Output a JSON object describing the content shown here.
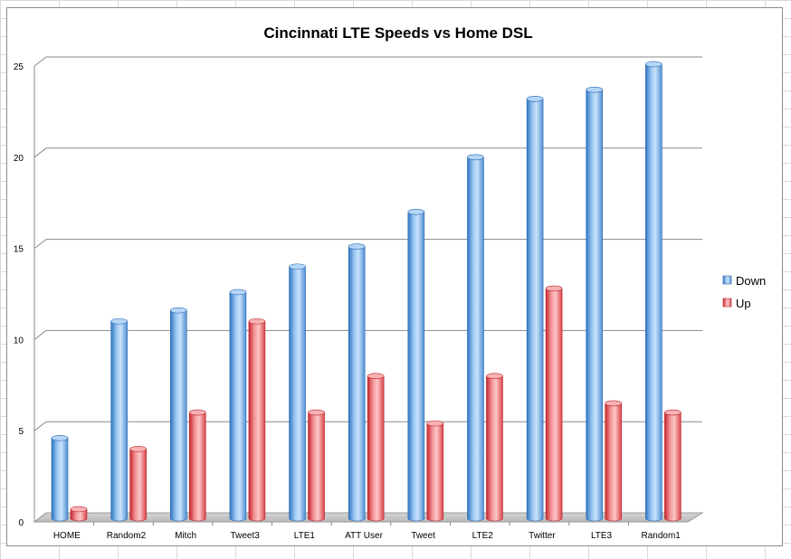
{
  "chart_data": {
    "type": "bar",
    "title": "Cincinnati LTE Speeds vs Home DSL",
    "categories": [
      "HOME",
      "Random2",
      "Mitch",
      "Tweet3",
      "LTE1",
      "ATT User",
      "Tweet",
      "LTE2",
      "Twitter",
      "LTE3",
      "Random1"
    ],
    "series": [
      {
        "name": "Down",
        "color": "#4a90d9",
        "values": [
          4.6,
          11.0,
          11.6,
          12.6,
          14.0,
          15.1,
          17.0,
          20.0,
          23.2,
          23.7,
          25.1
        ]
      },
      {
        "name": "Up",
        "color": "#e0474c",
        "values": [
          0.7,
          4.0,
          6.0,
          11.0,
          6.0,
          8.0,
          5.4,
          8.0,
          12.8,
          6.5,
          6.0
        ]
      }
    ],
    "ylim": [
      0,
      25
    ],
    "yticks": [
      "0",
      "5",
      "10",
      "15",
      "20",
      "25"
    ],
    "grid": true,
    "legend_position": "right",
    "style": "3d-cylinder"
  }
}
